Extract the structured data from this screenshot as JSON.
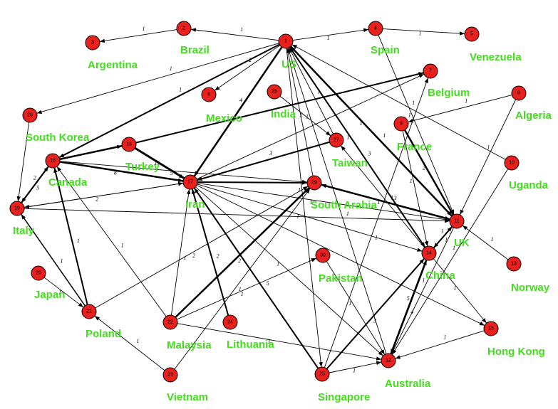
{
  "nodes": [
    {
      "id": "1",
      "label": "US"
    },
    {
      "id": "2",
      "label": "Brazil"
    },
    {
      "id": "3",
      "label": "Argentina"
    },
    {
      "id": "4",
      "label": "Spain"
    },
    {
      "id": "5",
      "label": "Venezuela"
    },
    {
      "id": "6",
      "label": "Mexico"
    },
    {
      "id": "7",
      "label": "Belgium"
    },
    {
      "id": "8",
      "label": "Algeria"
    },
    {
      "id": "9",
      "label": "France"
    },
    {
      "id": "10",
      "label": "Uganda"
    },
    {
      "id": "11",
      "label": "UK"
    },
    {
      "id": "13",
      "label": "Norway"
    },
    {
      "id": "14",
      "label": "China"
    },
    {
      "id": "15",
      "label": "Hong Kong"
    },
    {
      "id": "16",
      "label": "Turkey"
    },
    {
      "id": "17",
      "label": "Iran"
    },
    {
      "id": "18",
      "label": "Canada"
    },
    {
      "id": "19",
      "label": "Italy"
    },
    {
      "id": "20",
      "label": "Japan"
    },
    {
      "id": "21",
      "label": "Poland"
    },
    {
      "id": "22",
      "label": "Malaysia"
    },
    {
      "id": "23",
      "label": "Vietnam"
    },
    {
      "id": "24",
      "label": "Lithuania"
    },
    {
      "id": "25",
      "label": "Singapore"
    },
    {
      "id": "26",
      "label": "South Korea"
    },
    {
      "id": "27",
      "label": "Taiwan"
    },
    {
      "id": "28",
      "label": "India"
    },
    {
      "id": "29",
      "label": "South Arabia"
    },
    {
      "id": "30",
      "label": "Pakistan"
    },
    {
      "id": "12",
      "label": "Australia"
    }
  ],
  "edges": [
    {
      "from": "1",
      "to": "2",
      "weight": "1"
    },
    {
      "from": "2",
      "to": "3",
      "weight": "1"
    },
    {
      "from": "1",
      "to": "4",
      "weight": "1"
    },
    {
      "from": "4",
      "to": "5",
      "weight": "1"
    },
    {
      "from": "1",
      "to": "6",
      "weight": "2"
    },
    {
      "from": "1",
      "to": "26",
      "weight": "1"
    },
    {
      "from": "1",
      "to": "18",
      "weight": "1"
    },
    {
      "from": "1",
      "to": "17",
      "weight": "4"
    },
    {
      "from": "1",
      "to": "25",
      "weight": "1"
    },
    {
      "from": "4",
      "to": "11",
      "weight": "1"
    },
    {
      "from": "26",
      "to": "19",
      "weight": ""
    },
    {
      "from": "18",
      "to": "19",
      "weight": "2"
    },
    {
      "from": "18",
      "to": "16",
      "weight": ""
    },
    {
      "from": "18",
      "to": "17",
      "weight": "8"
    },
    {
      "from": "18",
      "to": "29",
      "weight": "5"
    },
    {
      "from": "16",
      "to": "7",
      "weight": ""
    },
    {
      "from": "16",
      "to": "17",
      "weight": "11"
    },
    {
      "from": "27",
      "to": "17",
      "weight": "3"
    },
    {
      "from": "28",
      "to": "27",
      "weight": "2"
    },
    {
      "from": "19",
      "to": "17",
      "weight": "2"
    },
    {
      "from": "19",
      "to": "11",
      "weight": ""
    },
    {
      "from": "19",
      "to": "18",
      "weight": "5"
    },
    {
      "from": "20",
      "to": "21",
      "weight": "1"
    },
    {
      "from": "21",
      "to": "19",
      "weight": "1"
    },
    {
      "from": "21",
      "to": "18",
      "weight": "1"
    },
    {
      "from": "21",
      "to": "29",
      "weight": "2"
    },
    {
      "from": "22",
      "to": "17",
      "weight": "1"
    },
    {
      "from": "22",
      "to": "29",
      "weight": "2"
    },
    {
      "from": "22",
      "to": "30",
      "weight": "1"
    },
    {
      "from": "22",
      "to": "12",
      "weight": "1"
    },
    {
      "from": "22",
      "to": "18",
      "weight": "1"
    },
    {
      "from": "23",
      "to": "21",
      "weight": "1"
    },
    {
      "from": "23",
      "to": "29",
      "weight": "1"
    },
    {
      "from": "24",
      "to": "17",
      "weight": "2"
    },
    {
      "from": "25",
      "to": "17",
      "weight": "5"
    },
    {
      "from": "25",
      "to": "14",
      "weight": "3"
    },
    {
      "from": "25",
      "to": "12",
      "weight": "1"
    },
    {
      "from": "25",
      "to": "7",
      "weight": "1"
    },
    {
      "from": "17",
      "to": "29",
      "weight": ""
    },
    {
      "from": "17",
      "to": "11",
      "weight": "1"
    },
    {
      "from": "17",
      "to": "14",
      "weight": "1"
    },
    {
      "from": "17",
      "to": "12",
      "weight": "1"
    },
    {
      "from": "17",
      "to": "15",
      "weight": "1"
    },
    {
      "from": "17",
      "to": "7",
      "weight": ""
    },
    {
      "from": "11",
      "to": "1",
      "weight": "1"
    },
    {
      "from": "11",
      "to": "29",
      "weight": "3"
    },
    {
      "from": "11",
      "to": "12",
      "weight": "1"
    },
    {
      "from": "14",
      "to": "1",
      "weight": "3"
    },
    {
      "from": "14",
      "to": "11",
      "weight": "1"
    },
    {
      "from": "14",
      "to": "12",
      "weight": "5"
    },
    {
      "from": "14",
      "to": "15",
      "weight": "1"
    },
    {
      "from": "14",
      "to": "27",
      "weight": "1"
    },
    {
      "from": "9",
      "to": "11",
      "weight": "2"
    },
    {
      "from": "9",
      "to": "14",
      "weight": "1"
    },
    {
      "from": "8",
      "to": "9",
      "weight": "1"
    },
    {
      "from": "8",
      "to": "11",
      "weight": "1"
    },
    {
      "from": "10",
      "to": "1",
      "weight": "1"
    },
    {
      "from": "10",
      "to": "12",
      "weight": "1"
    },
    {
      "from": "13",
      "to": "11",
      "weight": "1"
    },
    {
      "from": "15",
      "to": "12",
      "weight": "1"
    },
    {
      "from": "30",
      "to": "12",
      "weight": "1"
    },
    {
      "from": "12",
      "to": "1",
      "weight": "1"
    },
    {
      "from": "12",
      "to": "14",
      "weight": "4"
    },
    {
      "from": "29",
      "to": "1",
      "weight": "1"
    },
    {
      "from": "27",
      "to": "1",
      "weight": "1"
    },
    {
      "from": "11",
      "to": "14",
      "weight": "1"
    },
    {
      "from": "1",
      "to": "11",
      "weight": "1"
    },
    {
      "from": "1",
      "to": "14",
      "weight": "1"
    },
    {
      "from": "17",
      "to": "19",
      "weight": ""
    },
    {
      "from": "29",
      "to": "11",
      "weight": "1"
    }
  ]
}
